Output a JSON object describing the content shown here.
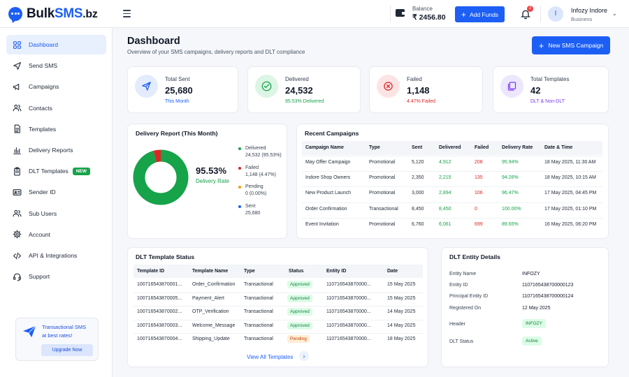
{
  "brand": {
    "name_a": "Bulk",
    "name_b": "SMS",
    "name_c": ".bz"
  },
  "topbar": {
    "balance_label": "Balance",
    "balance_value": "₹ 2456.80",
    "add_funds": "Add Funds",
    "notification_count": "2",
    "user_initial": "I",
    "user_name": "Infozy Indore",
    "user_role": "Business"
  },
  "sidebar": {
    "items": [
      {
        "label": "Dashboard",
        "icon": "grid-icon"
      },
      {
        "label": "Send SMS",
        "icon": "send-icon"
      },
      {
        "label": "Campaigns",
        "icon": "megaphone-icon"
      },
      {
        "label": "Contacts",
        "icon": "users-icon"
      },
      {
        "label": "Templates",
        "icon": "document-icon"
      },
      {
        "label": "Delivery Reports",
        "icon": "bar-chart-icon"
      },
      {
        "label": "DLT Templates",
        "icon": "clipboard-icon",
        "tag": "NEW"
      },
      {
        "label": "Sender ID",
        "icon": "id-card-icon"
      },
      {
        "label": "Sub Users",
        "icon": "users-icon"
      },
      {
        "label": "Account",
        "icon": "gear-icon"
      },
      {
        "label": "API & Integrations",
        "icon": "code-icon"
      },
      {
        "label": "Support",
        "icon": "headset-icon"
      }
    ],
    "promo": {
      "line1": "Transactional SMS",
      "line2": "at best rates!",
      "button": "Upgrade Now"
    }
  },
  "header": {
    "title": "Dashboard",
    "subtitle": "Overview of your SMS campaigns, delivery reports and DLT compliance",
    "new_campaign": "New SMS Campaign"
  },
  "stats": [
    {
      "title": "Total Sent",
      "value": "25,680",
      "sub": "This Month",
      "color": "#1d5ff5",
      "bg": "#e3ebfd",
      "icon": "paper-plane-icon"
    },
    {
      "title": "Delivered",
      "value": "24,532",
      "sub": "95.53% Delivered",
      "color": "#16a34a",
      "bg": "#dcf5e4",
      "icon": "check-circle-icon"
    },
    {
      "title": "Failed",
      "value": "1,148",
      "sub": "4.47% Failed",
      "color": "#dc2626",
      "bg": "#fde4e4",
      "icon": "x-circle-icon"
    },
    {
      "title": "Total Templates",
      "value": "42",
      "sub": "DLT & Non-DLT",
      "color": "#7c3aed",
      "bg": "#ede7fd",
      "icon": "copy-icon"
    }
  ],
  "delivery_report": {
    "title": "Delivery Report (This Month)",
    "rate": "95.53%",
    "rate_label": "Delivery Rate",
    "legend": [
      {
        "name": "Delivered",
        "value": "24,532 (95.53%)",
        "color": "#16a34a"
      },
      {
        "name": "Failed",
        "value": "1,148 (4.47%)",
        "color": "#dc2626"
      },
      {
        "name": "Pending",
        "value": "0 (0.00%)",
        "color": "#f59e0b"
      },
      {
        "name": "Sent",
        "value": "25,680",
        "color": "#1d5ff5"
      }
    ]
  },
  "chart_data": {
    "type": "pie",
    "title": "Delivery Report (This Month)",
    "categories": [
      "Delivered",
      "Failed",
      "Pending"
    ],
    "values": [
      24532,
      1148,
      0
    ],
    "colors": [
      "#16a34a",
      "#dc2626",
      "#f59e0b"
    ]
  },
  "recent_campaigns": {
    "title": "Recent Campaigns",
    "headers": [
      "Campaign Name",
      "Type",
      "Sent",
      "Delivered",
      "Failed",
      "Delivery Rate",
      "Date & Time"
    ],
    "rows": [
      [
        "May Offer Campaign",
        "Promotional",
        "5,120",
        "4,912",
        "208",
        "95.94%",
        "18 May 2025, 11:30 AM"
      ],
      [
        "Indore Shop Owners",
        "Promotional",
        "2,350",
        "2,215",
        "135",
        "94.26%",
        "18 May 2025, 10:15 AM"
      ],
      [
        "New Product Launch",
        "Promotional",
        "3,000",
        "2,894",
        "106",
        "96.47%",
        "17 May 2025, 04:45 PM"
      ],
      [
        "Order Confirmation",
        "Transactional",
        "8,450",
        "8,450",
        "0",
        "100.00%",
        "17 May 2025, 01:10 PM"
      ],
      [
        "Event Invitation",
        "Promotional",
        "6,760",
        "6,061",
        "699",
        "89.65%",
        "16 May 2025, 06:20 PM"
      ]
    ]
  },
  "dlt_templates": {
    "title": "DLT Template Status",
    "headers": [
      "Template ID",
      "Template Name",
      "Type",
      "Status",
      "Entity ID",
      "Date"
    ],
    "rows": [
      [
        "100716543870001...",
        "Order_Confirmation",
        "Transactional",
        "Approved",
        "110716543870000...",
        "15 May 2025"
      ],
      [
        "100716543870005...",
        "Payment_Alert",
        "Transactional",
        "Approved",
        "110716543870000...",
        "15 May 2025"
      ],
      [
        "100716543870002...",
        "OTP_Verification",
        "Transactional",
        "Approved",
        "110716543870000...",
        "14 May 2025"
      ],
      [
        "100716543870003...",
        "Welcome_Message",
        "Transactional",
        "Approved",
        "110716543870000...",
        "14 May 2025"
      ],
      [
        "100716543870004...",
        "Shipping_Update",
        "Transactional",
        "Pending",
        "110716543870000...",
        "18 May 2025"
      ]
    ],
    "view_all": "View All Templates"
  },
  "dlt_entity": {
    "title": "DLT Entity Details",
    "fields": [
      {
        "key": "Entity Name",
        "value": "INFOZY"
      },
      {
        "key": "Entity ID",
        "value": "1107165438700000123"
      },
      {
        "key": "Principal Entity ID",
        "value": "1107165438700000124"
      },
      {
        "key": "Registered On",
        "value": "12 May 2025"
      }
    ],
    "header_label": "Header",
    "header_value": "INFOZY",
    "status_label": "DLT Status",
    "status_value": "Active"
  }
}
